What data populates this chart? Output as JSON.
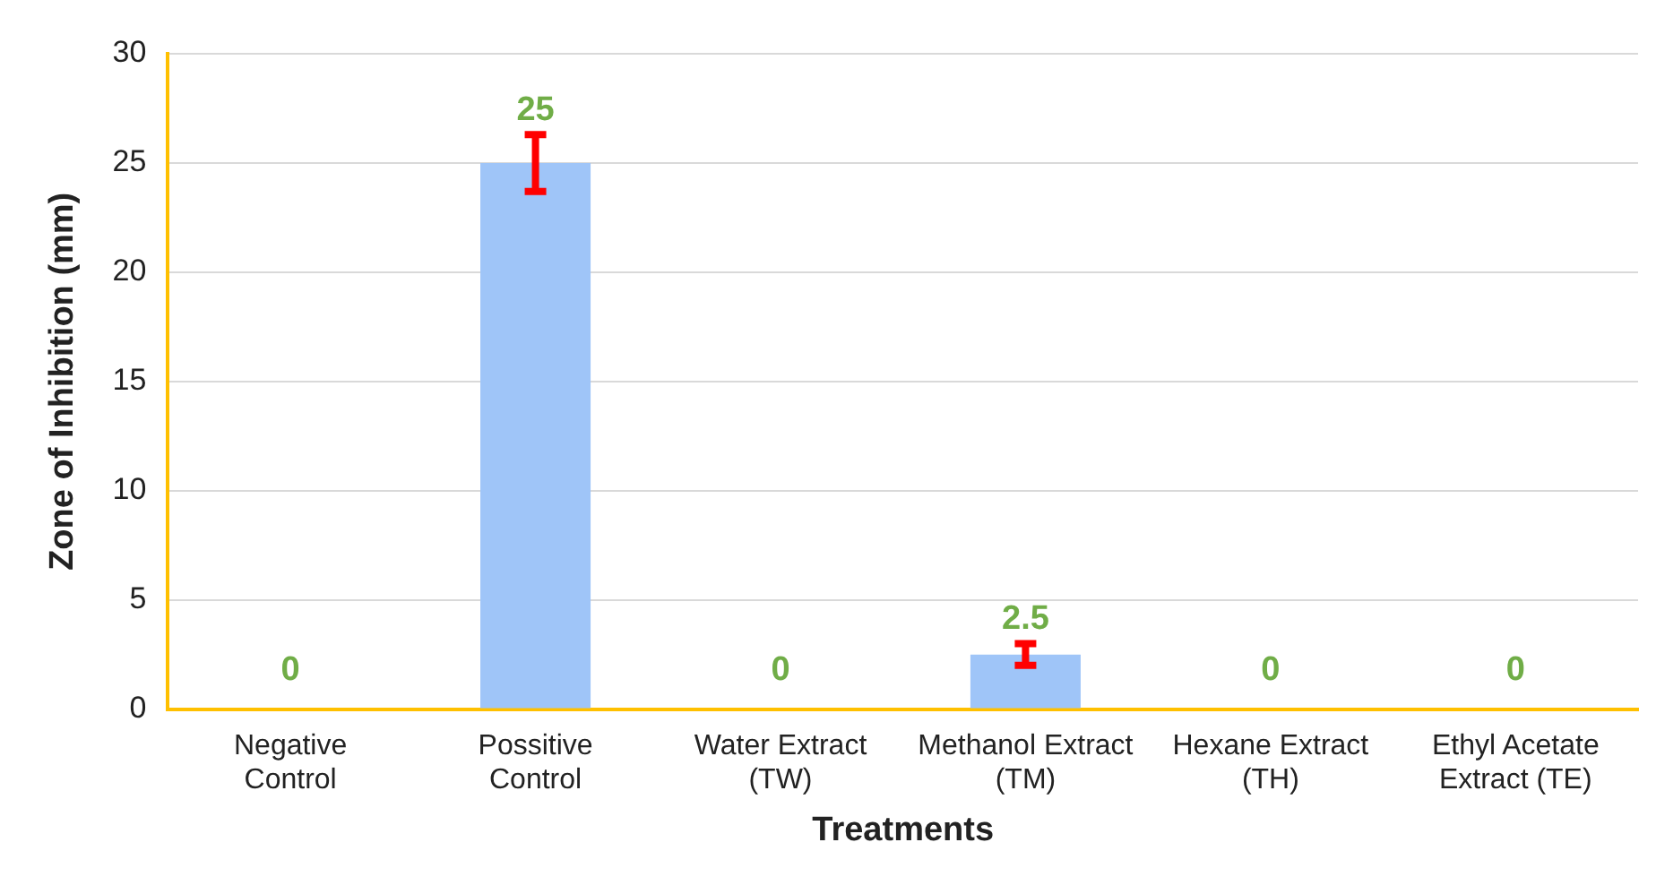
{
  "chart_data": {
    "type": "bar",
    "xlabel": "Treatments",
    "ylabel": "Zone of Inhibition (mm)",
    "categories": [
      "Negative Control",
      "Possitive Control",
      "Water Extract (TW)",
      "Methanol Extract (TM)",
      "Hexane Extract (TH)",
      "Ethyl Acetate Extract (TE)"
    ],
    "values": [
      0,
      25,
      0,
      2.5,
      0,
      0
    ],
    "color": "#9fc5f8",
    "errors": [
      null,
      1.3,
      null,
      0.5,
      null,
      null
    ],
    "ylim": [
      0,
      30
    ],
    "yticks": [
      0,
      5,
      10,
      15,
      20,
      25,
      30
    ],
    "grid": "y",
    "data_labels": true
  }
}
